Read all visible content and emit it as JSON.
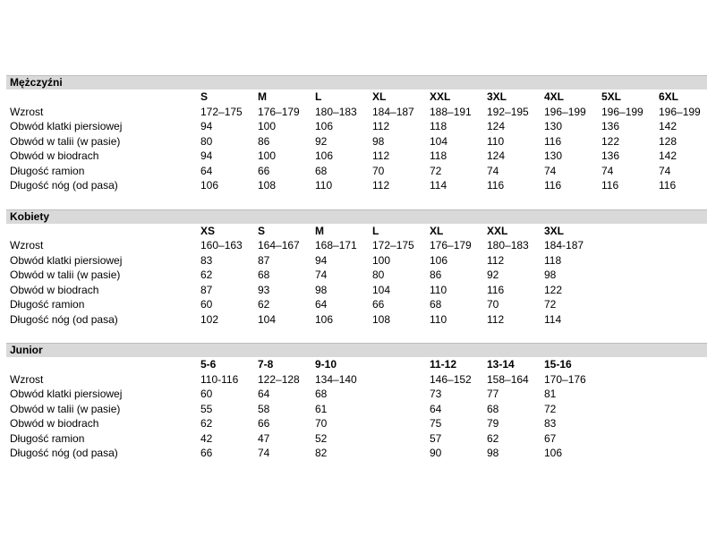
{
  "colors": {
    "section_header_bg": "#d9d9d9",
    "section_header_border": "#bdbdbd",
    "text": "#000000",
    "page_bg": "#ffffff"
  },
  "table": {
    "sections": [
      {
        "title": "Mężczyźni",
        "sizes": [
          "S",
          "M",
          "L",
          "XL",
          "XXL",
          "3XL",
          "4XL",
          "5XL",
          "6XL"
        ],
        "rows": [
          {
            "label": "Wzrost",
            "values": [
              "172–175",
              "176–179",
              "180–183",
              "184–187",
              "188–191",
              "192–195",
              "196–199",
              "196–199",
              "196–199"
            ]
          },
          {
            "label": "Obwód klatki piersiowej",
            "values": [
              "94",
              "100",
              "106",
              "112",
              "118",
              "124",
              "130",
              "136",
              "142"
            ]
          },
          {
            "label": "Obwód w talii (w pasie)",
            "values": [
              "80",
              "86",
              "92",
              "98",
              "104",
              "110",
              "116",
              "122",
              "128"
            ]
          },
          {
            "label": "Obwód w biodrach",
            "values": [
              "94",
              "100",
              "106",
              "112",
              "118",
              "124",
              "130",
              "136",
              "142"
            ]
          },
          {
            "label": "Długość ramion",
            "values": [
              "64",
              "66",
              "68",
              "70",
              "72",
              "74",
              "74",
              "74",
              "74"
            ]
          },
          {
            "label": "Długość nóg (od pasa)",
            "values": [
              "106",
              "108",
              "110",
              "112",
              "114",
              "116",
              "116",
              "116",
              "116"
            ]
          }
        ]
      },
      {
        "title": "Kobiety",
        "sizes": [
          "XS",
          "S",
          "M",
          "L",
          "XL",
          "XXL",
          "3XL",
          "",
          ""
        ],
        "rows": [
          {
            "label": "Wzrost",
            "values": [
              "160–163",
              "164–167",
              "168–171",
              "172–175",
              "176–179",
              "180–183",
              "184-187",
              "",
              ""
            ]
          },
          {
            "label": "Obwód klatki piersiowej",
            "values": [
              "83",
              "87",
              "94",
              "100",
              "106",
              "112",
              "118",
              "",
              ""
            ]
          },
          {
            "label": "Obwód w talii (w pasie)",
            "values": [
              "62",
              "68",
              "74",
              "80",
              "86",
              "92",
              "98",
              "",
              ""
            ]
          },
          {
            "label": "Obwód w biodrach",
            "values": [
              "87",
              "93",
              "98",
              "104",
              "110",
              "116",
              "122",
              "",
              ""
            ]
          },
          {
            "label": "Długość ramion",
            "values": [
              "60",
              "62",
              "64",
              "66",
              "68",
              "70",
              "72",
              "",
              ""
            ]
          },
          {
            "label": "Długość nóg (od pasa)",
            "values": [
              "102",
              "104",
              "106",
              "108",
              "110",
              "112",
              "114",
              "",
              ""
            ]
          }
        ]
      },
      {
        "title": "Junior",
        "sizes": [
          "5-6",
          "7-8",
          "9-10",
          "",
          "11-12",
          "13-14",
          "15-16",
          "",
          ""
        ],
        "rows": [
          {
            "label": "Wzrost",
            "values": [
              "110-116",
              "122–128",
              "134–140",
              "",
              "146–152",
              "158–164",
              "170–176",
              "",
              ""
            ]
          },
          {
            "label": "Obwód klatki piersiowej",
            "values": [
              "60",
              "64",
              "68",
              "",
              "73",
              "77",
              "81",
              "",
              ""
            ]
          },
          {
            "label": "Obwód w talii (w pasie)",
            "values": [
              "55",
              "58",
              "61",
              "",
              "64",
              "68",
              "72",
              "",
              ""
            ]
          },
          {
            "label": "Obwód w biodrach",
            "values": [
              "62",
              "66",
              "70",
              "",
              "75",
              "79",
              "83",
              "",
              ""
            ]
          },
          {
            "label": "Długość ramion",
            "values": [
              "42",
              "47",
              "52",
              "",
              "57",
              "62",
              "67",
              "",
              ""
            ]
          },
          {
            "label": "Długość nóg (od pasa)",
            "values": [
              "66",
              "74",
              "82",
              "",
              "90",
              "98",
              "106",
              "",
              ""
            ]
          }
        ]
      }
    ]
  }
}
